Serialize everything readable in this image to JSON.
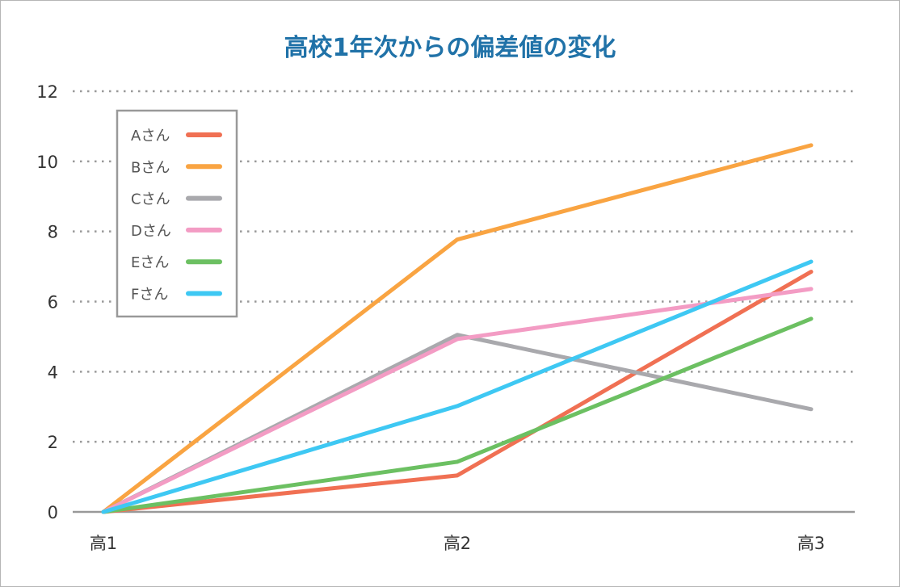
{
  "chart_data": {
    "type": "line",
    "title": "高校1年次からの偏差値の変化",
    "xlabel": "",
    "ylabel": "",
    "categories": [
      "高1",
      "高2",
      "高3"
    ],
    "ylim": [
      0,
      12
    ],
    "yticks": [
      0,
      2,
      4,
      6,
      8,
      10,
      12
    ],
    "grid": "horizontal-dotted",
    "legend_position": "top-left",
    "series": [
      {
        "name": "Aさん",
        "color": "#f07053",
        "values": [
          0,
          1.04,
          6.85
        ]
      },
      {
        "name": "Bさん",
        "color": "#f9a442",
        "values": [
          0,
          7.77,
          10.46
        ]
      },
      {
        "name": "Cさん",
        "color": "#a9a9ad",
        "values": [
          0,
          5.05,
          2.93
        ]
      },
      {
        "name": "Dさん",
        "color": "#f39cc4",
        "values": [
          0,
          4.93,
          6.36
        ]
      },
      {
        "name": "Eさん",
        "color": "#6cc062",
        "values": [
          0,
          1.43,
          5.51
        ]
      },
      {
        "name": "Fさん",
        "color": "#3ec8f3",
        "values": [
          0,
          3.02,
          7.14
        ]
      }
    ]
  }
}
